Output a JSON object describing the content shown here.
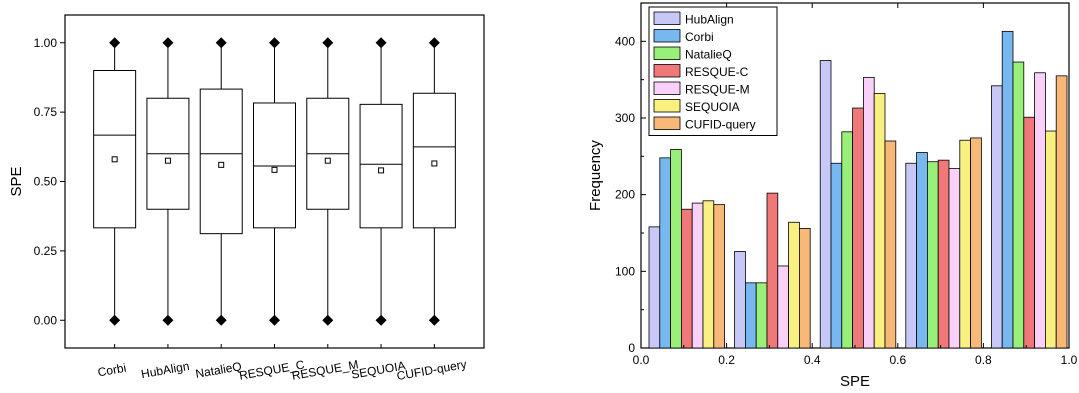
{
  "chart_data": [
    {
      "type": "box",
      "ylabel": "SPE",
      "categories": [
        "Corbi",
        "HubAlign",
        "NatalieQ",
        "RESQUE_C",
        "RESQUE_M",
        "SEQUOIA",
        "CUFID-query"
      ],
      "ylim": [
        -0.1,
        1.1
      ],
      "yticks": [
        "0.00",
        "0.25",
        "0.50",
        "0.75",
        "1.00"
      ],
      "ytick_values": [
        0,
        0.25,
        0.5,
        0.75,
        1.0
      ],
      "boxes": [
        {
          "min": 0,
          "q1": 0.333,
          "median": 0.667,
          "q3": 0.9,
          "max": 1.0,
          "mean": 0.58,
          "outliers": [
            0,
            1
          ]
        },
        {
          "min": 0,
          "q1": 0.4,
          "median": 0.6,
          "q3": 0.8,
          "max": 1.0,
          "mean": 0.575,
          "outliers": [
            0,
            1
          ]
        },
        {
          "min": 0,
          "q1": 0.312,
          "median": 0.6,
          "q3": 0.833,
          "max": 1.0,
          "mean": 0.56,
          "outliers": [
            0,
            1
          ]
        },
        {
          "min": 0,
          "q1": 0.333,
          "median": 0.556,
          "q3": 0.783,
          "max": 1.0,
          "mean": 0.542,
          "outliers": [
            0,
            1
          ]
        },
        {
          "min": 0,
          "q1": 0.4,
          "median": 0.6,
          "q3": 0.8,
          "max": 1.0,
          "mean": 0.575,
          "outliers": [
            0,
            1
          ]
        },
        {
          "min": 0,
          "q1": 0.333,
          "median": 0.562,
          "q3": 0.778,
          "max": 1.0,
          "mean": 0.54,
          "outliers": [
            0,
            1
          ]
        },
        {
          "min": 0,
          "q1": 0.333,
          "median": 0.625,
          "q3": 0.818,
          "max": 1.0,
          "mean": 0.565,
          "outliers": [
            0,
            1
          ]
        }
      ]
    },
    {
      "type": "bar",
      "xlabel": "SPE",
      "ylabel": "Frequency",
      "xlim": [
        0.0,
        1.0
      ],
      "ylim": [
        0,
        450
      ],
      "xticks": [
        "0.0",
        "0.2",
        "0.4",
        "0.6",
        "0.8",
        "1.0"
      ],
      "xtick_values": [
        0,
        0.2,
        0.4,
        0.6,
        0.8,
        1.0
      ],
      "yticks": [
        "0",
        "100",
        "200",
        "300",
        "400"
      ],
      "ytick_values": [
        0,
        100,
        200,
        300,
        400
      ],
      "bin_edges": [
        0.0,
        0.2,
        0.4,
        0.6,
        0.8,
        1.0
      ],
      "legend_position": "top-left",
      "series": [
        {
          "name": "HubAlign",
          "color": "#c8c8f8",
          "values": [
            158,
            126,
            375,
            241,
            342
          ]
        },
        {
          "name": "Corbi",
          "color": "#78b8f0",
          "values": [
            248,
            85,
            241,
            255,
            413
          ]
        },
        {
          "name": "NatalieQ",
          "color": "#98f078",
          "values": [
            259,
            85,
            282,
            243,
            373
          ]
        },
        {
          "name": "RESQUE-C",
          "color": "#f07878",
          "values": [
            181,
            202,
            313,
            245,
            301
          ]
        },
        {
          "name": "RESQUE-M",
          "color": "#f8d0f8",
          "values": [
            189,
            107,
            353,
            234,
            359
          ]
        },
        {
          "name": "SEQUOIA",
          "color": "#f8f080",
          "values": [
            192,
            164,
            332,
            271,
            283
          ]
        },
        {
          "name": "CUFID-query",
          "color": "#f8b878",
          "values": [
            187,
            156,
            270,
            274,
            355
          ]
        }
      ]
    }
  ]
}
